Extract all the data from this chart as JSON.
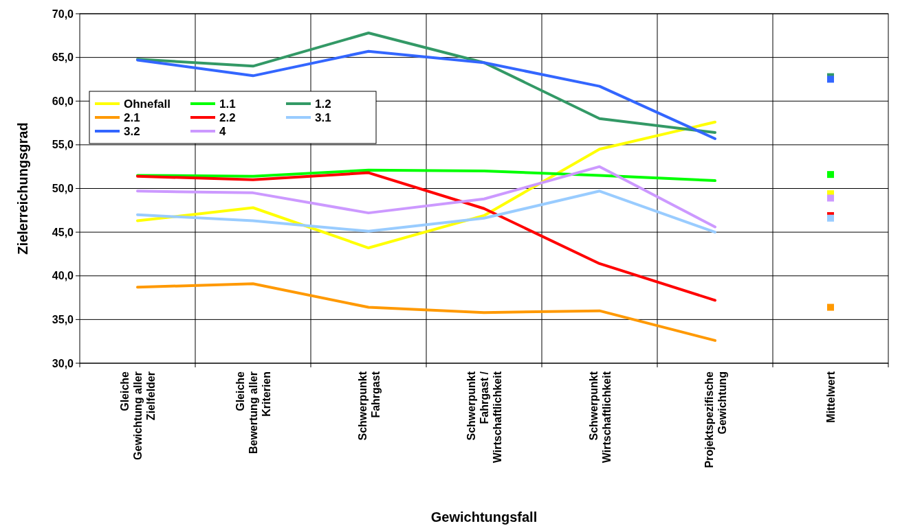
{
  "chart_data": {
    "type": "line",
    "xlabel": "Gewichtungsfall",
    "ylabel": "Zielerreichungsgrad",
    "categories": [
      "Gleiche Gewichtung aller Zielfelder",
      "Gleiche Bewertung aller Kriterien",
      "Schwerpunkt Fahrgast",
      "Schwerpunkt Fahrgast / Wirtschaftlichkeit",
      "Schwerpunkt Wirtschaftlichkeit",
      "Projektspezifische Gewichtung",
      "Mittelwert"
    ],
    "ylim": [
      30,
      70
    ],
    "yticks": [
      {
        "value": 30,
        "label": "30,0"
      },
      {
        "value": 35,
        "label": "35,0"
      },
      {
        "value": 40,
        "label": "40,0"
      },
      {
        "value": 45,
        "label": "45,0"
      },
      {
        "value": 50,
        "label": "50,0"
      },
      {
        "value": 55,
        "label": "55,0"
      },
      {
        "value": 60,
        "label": "60,0"
      },
      {
        "value": 65,
        "label": "65,0"
      },
      {
        "value": 70,
        "label": "70,0"
      }
    ],
    "grid": true,
    "legend": "top left",
    "marker": "none",
    "line_style": "solid",
    "series": [
      {
        "name": "Ohnefall",
        "color": "#ffff00",
        "values": [
          46.3,
          47.8,
          43.2,
          46.9,
          54.5,
          57.6,
          null
        ]
      },
      {
        "name": "1.1",
        "color": "#00ff00",
        "values": [
          51.5,
          51.4,
          52.1,
          52.0,
          51.5,
          50.9,
          null
        ]
      },
      {
        "name": "1.2",
        "color": "#339966",
        "values": [
          64.8,
          64.0,
          67.8,
          64.4,
          58.0,
          56.4,
          null
        ]
      },
      {
        "name": "2.1",
        "color": "#ff9900",
        "values": [
          38.7,
          39.1,
          36.4,
          35.8,
          36.0,
          32.6,
          null
        ]
      },
      {
        "name": "2.2",
        "color": "#ff0000",
        "values": [
          51.4,
          51.0,
          51.8,
          47.7,
          41.4,
          37.2,
          null
        ]
      },
      {
        "name": "3.1",
        "color": "#99ccff",
        "values": [
          47.0,
          46.3,
          45.1,
          46.6,
          49.7,
          45.0,
          null
        ]
      },
      {
        "name": "3.2",
        "color": "#3366ff",
        "values": [
          64.7,
          62.9,
          65.7,
          64.4,
          61.7,
          55.7,
          null
        ]
      },
      {
        "name": "4",
        "color": "#cc99ff",
        "values": [
          49.7,
          49.5,
          47.2,
          48.8,
          52.5,
          45.6,
          null
        ]
      },
      {
        "type": "scatter",
        "marker": "square",
        "color": "#339966",
        "x": [
          "Mittelwert"
        ],
        "values": [
          62.8
        ]
      },
      {
        "type": "scatter",
        "marker": "square",
        "color": "#3366ff",
        "x": [
          "Mittelwert"
        ],
        "values": [
          62.5
        ]
      },
      {
        "type": "scatter",
        "marker": "square",
        "color": "#00ff00",
        "x": [
          "Mittelwert"
        ],
        "values": [
          51.6
        ]
      },
      {
        "type": "scatter",
        "marker": "square",
        "color": "#ffff00",
        "x": [
          "Mittelwert"
        ],
        "values": [
          49.4
        ]
      },
      {
        "type": "scatter",
        "marker": "square",
        "color": "#ff0000",
        "x": [
          "Mittelwert"
        ],
        "values": [
          46.9
        ]
      },
      {
        "type": "scatter",
        "marker": "square",
        "color": "#99ccff",
        "x": [
          "Mittelwert"
        ],
        "values": [
          46.6
        ]
      },
      {
        "type": "scatter",
        "marker": "square",
        "color": "#cc99ff",
        "x": [
          "Mittelwert"
        ],
        "values": [
          48.9
        ]
      },
      {
        "type": "scatter",
        "marker": "square",
        "color": "#ff9900",
        "x": [
          "Mittelwert"
        ],
        "values": [
          36.4
        ]
      }
    ]
  }
}
